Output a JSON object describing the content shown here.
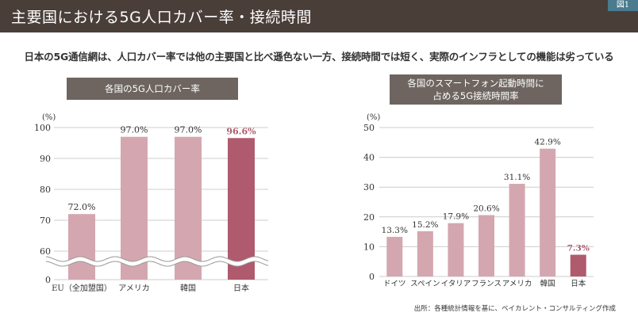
{
  "header": {
    "title": "主要国における5G人口カバー率・接続時間",
    "figure_tag": "図1"
  },
  "subtitle": "日本の5G通信網は、人口カバー率では他の主要国と比べ遜色ない一方、接続時間では短く、実際のインフラとしての機能は劣っている",
  "left_panel_title": "各国の5G人口カバー率",
  "right_panel_title": "各国のスマートフォン起動時間に\n占める5G接続時間率",
  "source": "出所：各種統計情報を基に、ベイカレント・コンサルティング作成",
  "colors": {
    "bar": "#d4a7b0",
    "highlight": "#b05a6e",
    "highlight_label": "#b05a6e",
    "grid": "#cccccc",
    "header": "#4a3e39",
    "panel": "#6e6560"
  },
  "chart_data": [
    {
      "type": "bar",
      "title": "各国の5G人口カバー率",
      "unit_label": "(%)",
      "categories": [
        "EU（全加盟国）",
        "アメリカ",
        "韓国",
        "日本"
      ],
      "values": [
        72.0,
        97.0,
        97.0,
        96.6
      ],
      "value_labels": [
        "72.0%",
        "97.0%",
        "97.0%",
        "96.6%"
      ],
      "highlight_index": 3,
      "ylim": [
        50,
        100
      ],
      "yticks": [
        100,
        90,
        80,
        70,
        60,
        0
      ],
      "axis_break": true,
      "grid": true
    },
    {
      "type": "bar",
      "title": "各国のスマートフォン起動時間に占める5G接続時間率",
      "unit_label": "(%)",
      "categories": [
        "ドイツ",
        "スペイン",
        "イタリア",
        "フランス",
        "アメリカ",
        "韓国",
        "日本"
      ],
      "values": [
        13.3,
        15.2,
        17.9,
        20.6,
        31.1,
        42.9,
        7.3
      ],
      "value_labels": [
        "13.3%",
        "15.2%",
        "17.9%",
        "20.6%",
        "31.1%",
        "42.9%",
        "7.3%"
      ],
      "highlight_index": 6,
      "ylim": [
        0,
        50
      ],
      "yticks": [
        50,
        40,
        30,
        20,
        10,
        0
      ],
      "grid": true
    }
  ]
}
